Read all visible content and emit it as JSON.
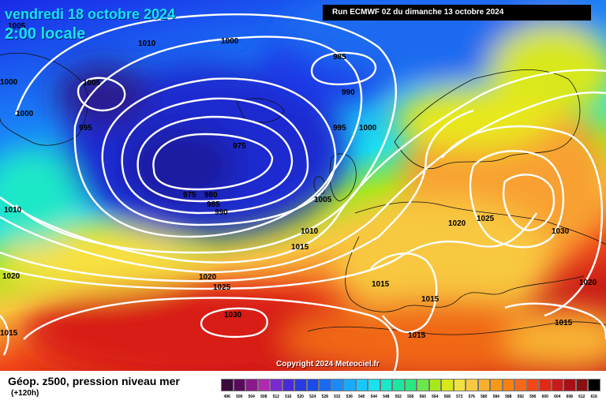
{
  "header": {
    "date": "vendredi 18 octobre 2024",
    "time": "2:00 locale",
    "run": "Run ECMWF 0Z du dimanche 13 octobre 2024"
  },
  "copyright": "Copyright 2024 Meteociel.fr",
  "legend": {
    "title": "Géop. z500, pression niveau mer",
    "subtitle": "(+120h)",
    "ticks": [
      "496",
      "500",
      "504",
      "508",
      "512",
      "516",
      "520",
      "524",
      "528",
      "532",
      "536",
      "540",
      "544",
      "548",
      "552",
      "556",
      "560",
      "564",
      "568",
      "572",
      "576",
      "580",
      "584",
      "588",
      "592",
      "596",
      "600",
      "604",
      "608",
      "612",
      "616"
    ],
    "colors": [
      "#3a0a3a",
      "#5a0a5a",
      "#8a1a8a",
      "#b02ab0",
      "#7a2ad0",
      "#4a2ad8",
      "#2a3ae0",
      "#1a4ae8",
      "#1a6af0",
      "#1a8af8",
      "#1aaaff",
      "#1ac8ff",
      "#1ae0f0",
      "#1ae8c8",
      "#1ae8a0",
      "#2ae880",
      "#6ae84a",
      "#a8e81a",
      "#d8e81a",
      "#f0e040",
      "#f8c840",
      "#f8b030",
      "#f89818",
      "#f88010",
      "#f86818",
      "#f04818",
      "#e02a18",
      "#c81a18",
      "#a81018",
      "#881010",
      "#000000"
    ]
  },
  "isobars": [
    {
      "value": "1005",
      "loc": "nw-corner"
    },
    {
      "value": "1010",
      "loc": "greenland-north"
    },
    {
      "value": "1000",
      "loc": "north-center"
    },
    {
      "value": "985",
      "loc": "norwegian-sea"
    },
    {
      "value": "1000",
      "loc": "west-edge"
    },
    {
      "value": "1005",
      "loc": "greenland-low"
    },
    {
      "value": "990",
      "loc": "iceland-east"
    },
    {
      "value": "1000",
      "loc": "greenland-south"
    },
    {
      "value": "995",
      "loc": "greenland-southwest"
    },
    {
      "value": "995",
      "loc": "north-sea-west"
    },
    {
      "value": "1000",
      "loc": "north-sea-east"
    },
    {
      "value": "975",
      "loc": "low-center-east"
    },
    {
      "value": "975",
      "loc": "low-center-west"
    },
    {
      "value": "980",
      "loc": "low-south"
    },
    {
      "value": "985",
      "loc": "low-south-2"
    },
    {
      "value": "990",
      "loc": "low-south-3"
    },
    {
      "value": "1010",
      "loc": "west-mid"
    },
    {
      "value": "1005",
      "loc": "ireland"
    },
    {
      "value": "1020",
      "loc": "central-europe"
    },
    {
      "value": "1025",
      "loc": "central-europe-east"
    },
    {
      "value": "1010",
      "loc": "biscay"
    },
    {
      "value": "1015",
      "loc": "biscay-south"
    },
    {
      "value": "1030",
      "loc": "russia"
    },
    {
      "value": "1020",
      "loc": "west-edge-south"
    },
    {
      "value": "1020",
      "loc": "atlantic-south"
    },
    {
      "value": "1025",
      "loc": "azores-north"
    },
    {
      "value": "1015",
      "loc": "iberia"
    },
    {
      "value": "1015",
      "loc": "mediterranean"
    },
    {
      "value": "1020",
      "loc": "black-sea"
    },
    {
      "value": "1030",
      "loc": "azores-high"
    },
    {
      "value": "1015",
      "loc": "turkey"
    },
    {
      "value": "1015",
      "loc": "sw-corner"
    },
    {
      "value": "1015",
      "loc": "north-africa"
    }
  ]
}
